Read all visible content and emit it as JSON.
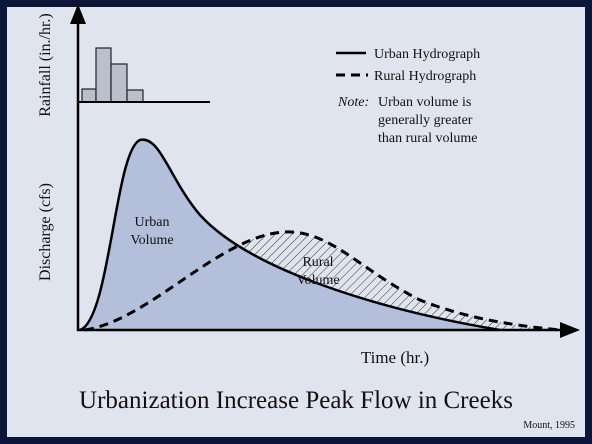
{
  "title": "Urbanization Increase Peak Flow in Creeks",
  "credit": "Mount, 1995",
  "axes": {
    "x_label": "Time (hr.)",
    "y_label_discharge": "Discharge (cfs)",
    "y_label_rainfall": "Rainfall (in./hr.)"
  },
  "legend": [
    {
      "label": "Urban Hydrograph"
    },
    {
      "label": "Rural Hydrograph"
    }
  ],
  "note": {
    "prefix": "Note:",
    "lines": [
      "Urban volume is",
      "generally greater",
      "than rural volume"
    ]
  },
  "areas": {
    "urban": [
      "Urban",
      "Volume"
    ],
    "rural": [
      "Rural",
      "Volume"
    ]
  }
}
